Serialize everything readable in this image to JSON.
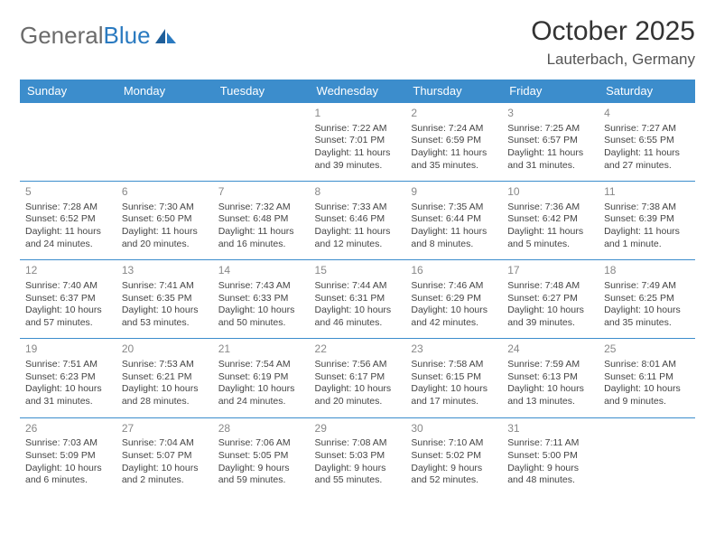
{
  "logo": {
    "text_gray": "General",
    "text_blue": "Blue",
    "accent_color": "#2a7ac0",
    "gray_color": "#6b6b6b"
  },
  "title": "October 2025",
  "location": "Lauterbach, Germany",
  "colors": {
    "header_bg": "#3c8dcc",
    "header_text": "#ffffff",
    "rule": "#3c8dcc",
    "body_text": "#444",
    "daynum": "#888"
  },
  "day_headers": [
    "Sunday",
    "Monday",
    "Tuesday",
    "Wednesday",
    "Thursday",
    "Friday",
    "Saturday"
  ],
  "weeks": [
    [
      null,
      null,
      null,
      {
        "n": "1",
        "sr": "7:22 AM",
        "ss": "7:01 PM",
        "dl": "11 hours and 39 minutes."
      },
      {
        "n": "2",
        "sr": "7:24 AM",
        "ss": "6:59 PM",
        "dl": "11 hours and 35 minutes."
      },
      {
        "n": "3",
        "sr": "7:25 AM",
        "ss": "6:57 PM",
        "dl": "11 hours and 31 minutes."
      },
      {
        "n": "4",
        "sr": "7:27 AM",
        "ss": "6:55 PM",
        "dl": "11 hours and 27 minutes."
      }
    ],
    [
      {
        "n": "5",
        "sr": "7:28 AM",
        "ss": "6:52 PM",
        "dl": "11 hours and 24 minutes."
      },
      {
        "n": "6",
        "sr": "7:30 AM",
        "ss": "6:50 PM",
        "dl": "11 hours and 20 minutes."
      },
      {
        "n": "7",
        "sr": "7:32 AM",
        "ss": "6:48 PM",
        "dl": "11 hours and 16 minutes."
      },
      {
        "n": "8",
        "sr": "7:33 AM",
        "ss": "6:46 PM",
        "dl": "11 hours and 12 minutes."
      },
      {
        "n": "9",
        "sr": "7:35 AM",
        "ss": "6:44 PM",
        "dl": "11 hours and 8 minutes."
      },
      {
        "n": "10",
        "sr": "7:36 AM",
        "ss": "6:42 PM",
        "dl": "11 hours and 5 minutes."
      },
      {
        "n": "11",
        "sr": "7:38 AM",
        "ss": "6:39 PM",
        "dl": "11 hours and 1 minute."
      }
    ],
    [
      {
        "n": "12",
        "sr": "7:40 AM",
        "ss": "6:37 PM",
        "dl": "10 hours and 57 minutes."
      },
      {
        "n": "13",
        "sr": "7:41 AM",
        "ss": "6:35 PM",
        "dl": "10 hours and 53 minutes."
      },
      {
        "n": "14",
        "sr": "7:43 AM",
        "ss": "6:33 PM",
        "dl": "10 hours and 50 minutes."
      },
      {
        "n": "15",
        "sr": "7:44 AM",
        "ss": "6:31 PM",
        "dl": "10 hours and 46 minutes."
      },
      {
        "n": "16",
        "sr": "7:46 AM",
        "ss": "6:29 PM",
        "dl": "10 hours and 42 minutes."
      },
      {
        "n": "17",
        "sr": "7:48 AM",
        "ss": "6:27 PM",
        "dl": "10 hours and 39 minutes."
      },
      {
        "n": "18",
        "sr": "7:49 AM",
        "ss": "6:25 PM",
        "dl": "10 hours and 35 minutes."
      }
    ],
    [
      {
        "n": "19",
        "sr": "7:51 AM",
        "ss": "6:23 PM",
        "dl": "10 hours and 31 minutes."
      },
      {
        "n": "20",
        "sr": "7:53 AM",
        "ss": "6:21 PM",
        "dl": "10 hours and 28 minutes."
      },
      {
        "n": "21",
        "sr": "7:54 AM",
        "ss": "6:19 PM",
        "dl": "10 hours and 24 minutes."
      },
      {
        "n": "22",
        "sr": "7:56 AM",
        "ss": "6:17 PM",
        "dl": "10 hours and 20 minutes."
      },
      {
        "n": "23",
        "sr": "7:58 AM",
        "ss": "6:15 PM",
        "dl": "10 hours and 17 minutes."
      },
      {
        "n": "24",
        "sr": "7:59 AM",
        "ss": "6:13 PM",
        "dl": "10 hours and 13 minutes."
      },
      {
        "n": "25",
        "sr": "8:01 AM",
        "ss": "6:11 PM",
        "dl": "10 hours and 9 minutes."
      }
    ],
    [
      {
        "n": "26",
        "sr": "7:03 AM",
        "ss": "5:09 PM",
        "dl": "10 hours and 6 minutes."
      },
      {
        "n": "27",
        "sr": "7:04 AM",
        "ss": "5:07 PM",
        "dl": "10 hours and 2 minutes."
      },
      {
        "n": "28",
        "sr": "7:06 AM",
        "ss": "5:05 PM",
        "dl": "9 hours and 59 minutes."
      },
      {
        "n": "29",
        "sr": "7:08 AM",
        "ss": "5:03 PM",
        "dl": "9 hours and 55 minutes."
      },
      {
        "n": "30",
        "sr": "7:10 AM",
        "ss": "5:02 PM",
        "dl": "9 hours and 52 minutes."
      },
      {
        "n": "31",
        "sr": "7:11 AM",
        "ss": "5:00 PM",
        "dl": "9 hours and 48 minutes."
      },
      null
    ]
  ],
  "labels": {
    "sunrise": "Sunrise:",
    "sunset": "Sunset:",
    "daylight": "Daylight:"
  }
}
